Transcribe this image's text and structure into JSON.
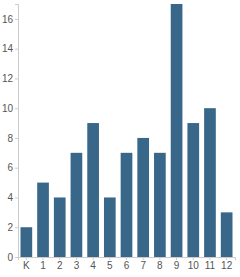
{
  "chart_data": {
    "type": "bar",
    "categories": [
      "K",
      "1",
      "2",
      "3",
      "4",
      "5",
      "6",
      "7",
      "8",
      "9",
      "10",
      "11",
      "12"
    ],
    "values": [
      2,
      5,
      4,
      7,
      9,
      4,
      7,
      8,
      7,
      17,
      9,
      10,
      3
    ],
    "color": "#38678a",
    "ylim": [
      0,
      17
    ],
    "yticks": [
      0,
      2,
      4,
      6,
      8,
      10,
      12,
      14,
      16
    ],
    "grid": false
  }
}
